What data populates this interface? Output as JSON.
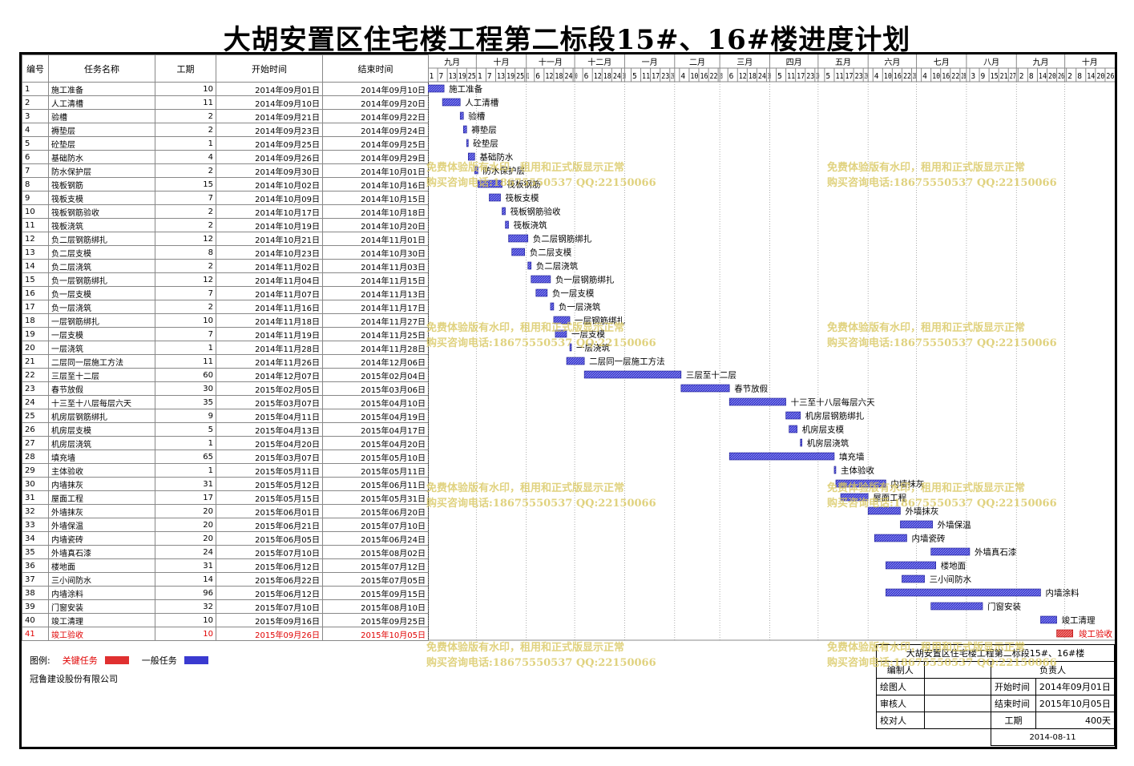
{
  "title": "大胡安置区住宅楼工程第二标段15#、16#楼进度计划",
  "table_headers": {
    "id": "编号",
    "name": "任务名称",
    "duration": "工期",
    "start": "开始时间",
    "end": "结束时间"
  },
  "legend": {
    "label": "图例:",
    "critical": "关键任务",
    "normal": "一般任务",
    "critical_color": "#e03030",
    "normal_color": "#3a3ad0"
  },
  "company": "冠鲁建设股份有限公司",
  "signoff": {
    "project": "大胡安置区住宅楼工程第二标段15#、16#楼",
    "editor": "编制人",
    "owner": "负责人",
    "drawer": "绘图人",
    "reviewer": "审核人",
    "checker": "校对人",
    "start_label": "开始时间",
    "start_value": "2014年09月01日",
    "end_label": "结束时间",
    "end_value": "2015年10月05日",
    "duration_label": "工期",
    "duration_value": "400天",
    "date": "2014-08-11"
  },
  "watermark": {
    "line1": "免费体验版有水印，租用和正式版显示正常",
    "line2": "购买咨询电话:18675550537 QQ:22150066"
  },
  "chart_data": {
    "type": "gantt",
    "timeline_start": "2014-09-01",
    "timeline_end": "2015-10-31",
    "months": [
      {
        "label": "九月",
        "start": "2014-09-01",
        "days": [
          "1",
          "7",
          "13",
          "19",
          "25"
        ]
      },
      {
        "label": "十月",
        "start": "2014-10-01",
        "days": [
          "1",
          "7",
          "13",
          "19",
          "25",
          "31"
        ]
      },
      {
        "label": "十一月",
        "start": "2014-11-01",
        "days": [
          "6",
          "12",
          "18",
          "24",
          "30"
        ]
      },
      {
        "label": "十二月",
        "start": "2014-12-01",
        "days": [
          "6",
          "12",
          "18",
          "24",
          "30"
        ]
      },
      {
        "label": "一月",
        "start": "2015-01-01",
        "days": [
          "5",
          "11",
          "17",
          "23",
          "29"
        ]
      },
      {
        "label": "二月",
        "start": "2015-02-01",
        "days": [
          "4",
          "10",
          "16",
          "22",
          "28"
        ]
      },
      {
        "label": "三月",
        "start": "2015-03-01",
        "days": [
          "6",
          "12",
          "18",
          "24",
          "30"
        ]
      },
      {
        "label": "四月",
        "start": "2015-04-01",
        "days": [
          "5",
          "11",
          "17",
          "23",
          "29"
        ]
      },
      {
        "label": "五月",
        "start": "2015-05-01",
        "days": [
          "5",
          "11",
          "17",
          "23",
          "29"
        ]
      },
      {
        "label": "六月",
        "start": "2015-06-01",
        "days": [
          "4",
          "10",
          "16",
          "22",
          "28"
        ]
      },
      {
        "label": "七月",
        "start": "2015-07-01",
        "days": [
          "4",
          "10",
          "16",
          "22",
          "28"
        ]
      },
      {
        "label": "八月",
        "start": "2015-08-01",
        "days": [
          "3",
          "9",
          "15",
          "21",
          "27"
        ]
      },
      {
        "label": "九月",
        "start": "2015-09-01",
        "days": [
          "2",
          "8",
          "14",
          "20",
          "26"
        ]
      },
      {
        "label": "十月",
        "start": "2015-10-01",
        "days": [
          "2",
          "8",
          "14",
          "20",
          "26"
        ]
      }
    ],
    "tasks": [
      {
        "id": "1",
        "name": "施工准备",
        "duration": "10",
        "start": "2014年09月01日",
        "end": "2014年09月10日",
        "s": "2014-09-01",
        "e": "2014-09-10",
        "critical": false
      },
      {
        "id": "2",
        "name": "人工清槽",
        "duration": "11",
        "start": "2014年09月10日",
        "end": "2014年09月20日",
        "s": "2014-09-10",
        "e": "2014-09-20",
        "critical": false
      },
      {
        "id": "3",
        "name": "验槽",
        "duration": "2",
        "start": "2014年09月21日",
        "end": "2014年09月22日",
        "s": "2014-09-21",
        "e": "2014-09-22",
        "critical": false
      },
      {
        "id": "4",
        "name": "褥垫层",
        "duration": "2",
        "start": "2014年09月23日",
        "end": "2014年09月24日",
        "s": "2014-09-23",
        "e": "2014-09-24",
        "critical": false
      },
      {
        "id": "5",
        "name": "砼垫层",
        "duration": "1",
        "start": "2014年09月25日",
        "end": "2014年09月25日",
        "s": "2014-09-25",
        "e": "2014-09-25",
        "critical": false
      },
      {
        "id": "6",
        "name": "基础防水",
        "duration": "4",
        "start": "2014年09月26日",
        "end": "2014年09月29日",
        "s": "2014-09-26",
        "e": "2014-09-29",
        "critical": false
      },
      {
        "id": "7",
        "name": "防水保护层",
        "duration": "2",
        "start": "2014年09月30日",
        "end": "2014年10月01日",
        "s": "2014-09-30",
        "e": "2014-10-01",
        "critical": false
      },
      {
        "id": "8",
        "name": "筏板钢筋",
        "duration": "15",
        "start": "2014年10月02日",
        "end": "2014年10月16日",
        "s": "2014-10-02",
        "e": "2014-10-16",
        "critical": false
      },
      {
        "id": "9",
        "name": "筏板支模",
        "duration": "7",
        "start": "2014年10月09日",
        "end": "2014年10月15日",
        "s": "2014-10-09",
        "e": "2014-10-15",
        "critical": false
      },
      {
        "id": "10",
        "name": "筏板钢筋验收",
        "duration": "2",
        "start": "2014年10月17日",
        "end": "2014年10月18日",
        "s": "2014-10-17",
        "e": "2014-10-18",
        "critical": false
      },
      {
        "id": "11",
        "name": "筏板浇筑",
        "duration": "2",
        "start": "2014年10月19日",
        "end": "2014年10月20日",
        "s": "2014-10-19",
        "e": "2014-10-20",
        "critical": false
      },
      {
        "id": "12",
        "name": "负二层钢筋绑扎",
        "duration": "12",
        "start": "2014年10月21日",
        "end": "2014年11月01日",
        "s": "2014-10-21",
        "e": "2014-11-01",
        "critical": false
      },
      {
        "id": "13",
        "name": "负二层支模",
        "duration": "8",
        "start": "2014年10月23日",
        "end": "2014年10月30日",
        "s": "2014-10-23",
        "e": "2014-10-30",
        "critical": false
      },
      {
        "id": "14",
        "name": "负二层浇筑",
        "duration": "2",
        "start": "2014年11月02日",
        "end": "2014年11月03日",
        "s": "2014-11-02",
        "e": "2014-11-03",
        "critical": false
      },
      {
        "id": "15",
        "name": "负一层钢筋绑扎",
        "duration": "12",
        "start": "2014年11月04日",
        "end": "2014年11月15日",
        "s": "2014-11-04",
        "e": "2014-11-15",
        "critical": false
      },
      {
        "id": "16",
        "name": "负一层支模",
        "duration": "7",
        "start": "2014年11月07日",
        "end": "2014年11月13日",
        "s": "2014-11-07",
        "e": "2014-11-13",
        "critical": false
      },
      {
        "id": "17",
        "name": "负一层浇筑",
        "duration": "2",
        "start": "2014年11月16日",
        "end": "2014年11月17日",
        "s": "2014-11-16",
        "e": "2014-11-17",
        "critical": false
      },
      {
        "id": "18",
        "name": "一层钢筋绑扎",
        "duration": "10",
        "start": "2014年11月18日",
        "end": "2014年11月27日",
        "s": "2014-11-18",
        "e": "2014-11-27",
        "critical": false
      },
      {
        "id": "19",
        "name": "一层支模",
        "duration": "7",
        "start": "2014年11月19日",
        "end": "2014年11月25日",
        "s": "2014-11-19",
        "e": "2014-11-25",
        "critical": false
      },
      {
        "id": "20",
        "name": "一层浇筑",
        "duration": "1",
        "start": "2014年11月28日",
        "end": "2014年11月28日",
        "s": "2014-11-28",
        "e": "2014-11-28",
        "critical": false
      },
      {
        "id": "21",
        "name": "二层同一层施工方法",
        "duration": "11",
        "start": "2014年11月26日",
        "end": "2014年12月06日",
        "s": "2014-11-26",
        "e": "2014-12-06",
        "critical": false
      },
      {
        "id": "22",
        "name": "三层至十二层",
        "duration": "60",
        "start": "2014年12月07日",
        "end": "2015年02月04日",
        "s": "2014-12-07",
        "e": "2015-02-04",
        "critical": false
      },
      {
        "id": "23",
        "name": "春节放假",
        "duration": "30",
        "start": "2015年02月05日",
        "end": "2015年03月06日",
        "s": "2015-02-05",
        "e": "2015-03-06",
        "critical": false
      },
      {
        "id": "24",
        "name": "十三至十八层每层六天",
        "duration": "35",
        "start": "2015年03月07日",
        "end": "2015年04月10日",
        "s": "2015-03-07",
        "e": "2015-04-10",
        "critical": false
      },
      {
        "id": "25",
        "name": "机房层钢筋绑扎",
        "duration": "9",
        "start": "2015年04月11日",
        "end": "2015年04月19日",
        "s": "2015-04-11",
        "e": "2015-04-19",
        "critical": false
      },
      {
        "id": "26",
        "name": "机房层支模",
        "duration": "5",
        "start": "2015年04月13日",
        "end": "2015年04月17日",
        "s": "2015-04-13",
        "e": "2015-04-17",
        "critical": false
      },
      {
        "id": "27",
        "name": "机房层浇筑",
        "duration": "1",
        "start": "2015年04月20日",
        "end": "2015年04月20日",
        "s": "2015-04-20",
        "e": "2015-04-20",
        "critical": false
      },
      {
        "id": "28",
        "name": "填充墙",
        "duration": "65",
        "start": "2015年03月07日",
        "end": "2015年05月10日",
        "s": "2015-03-07",
        "e": "2015-05-10",
        "critical": false
      },
      {
        "id": "29",
        "name": "主体验收",
        "duration": "1",
        "start": "2015年05月11日",
        "end": "2015年05月11日",
        "s": "2015-05-11",
        "e": "2015-05-11",
        "critical": false
      },
      {
        "id": "30",
        "name": "内墙抹灰",
        "duration": "31",
        "start": "2015年05月12日",
        "end": "2015年06月11日",
        "s": "2015-05-12",
        "e": "2015-06-11",
        "critical": false
      },
      {
        "id": "31",
        "name": "屋面工程",
        "duration": "17",
        "start": "2015年05月15日",
        "end": "2015年05月31日",
        "s": "2015-05-15",
        "e": "2015-05-31",
        "critical": false
      },
      {
        "id": "32",
        "name": "外墙抹灰",
        "duration": "20",
        "start": "2015年06月01日",
        "end": "2015年06月20日",
        "s": "2015-06-01",
        "e": "2015-06-20",
        "critical": false
      },
      {
        "id": "33",
        "name": "外墙保温",
        "duration": "20",
        "start": "2015年06月21日",
        "end": "2015年07月10日",
        "s": "2015-06-21",
        "e": "2015-07-10",
        "critical": false
      },
      {
        "id": "34",
        "name": "内墙瓷砖",
        "duration": "20",
        "start": "2015年06月05日",
        "end": "2015年06月24日",
        "s": "2015-06-05",
        "e": "2015-06-24",
        "critical": false
      },
      {
        "id": "35",
        "name": "外墙真石漆",
        "duration": "24",
        "start": "2015年07月10日",
        "end": "2015年08月02日",
        "s": "2015-07-10",
        "e": "2015-08-02",
        "critical": false
      },
      {
        "id": "36",
        "name": "楼地面",
        "duration": "31",
        "start": "2015年06月12日",
        "end": "2015年07月12日",
        "s": "2015-06-12",
        "e": "2015-07-12",
        "critical": false
      },
      {
        "id": "37",
        "name": "三小间防水",
        "duration": "14",
        "start": "2015年06月22日",
        "end": "2015年07月05日",
        "s": "2015-06-22",
        "e": "2015-07-05",
        "critical": false
      },
      {
        "id": "38",
        "name": "内墙涂料",
        "duration": "96",
        "start": "2015年06月12日",
        "end": "2015年09月15日",
        "s": "2015-06-12",
        "e": "2015-09-15",
        "critical": false
      },
      {
        "id": "39",
        "name": "门窗安装",
        "duration": "32",
        "start": "2015年07月10日",
        "end": "2015年08月10日",
        "s": "2015-07-10",
        "e": "2015-08-10",
        "critical": false
      },
      {
        "id": "40",
        "name": "竣工清理",
        "duration": "10",
        "start": "2015年09月16日",
        "end": "2015年09月25日",
        "s": "2015-09-16",
        "e": "2015-09-25",
        "critical": false
      },
      {
        "id": "41",
        "name": "竣工验收",
        "duration": "10",
        "start": "2015年09月26日",
        "end": "2015年10月05日",
        "s": "2015-09-26",
        "e": "2015-10-05",
        "critical": true
      }
    ]
  }
}
